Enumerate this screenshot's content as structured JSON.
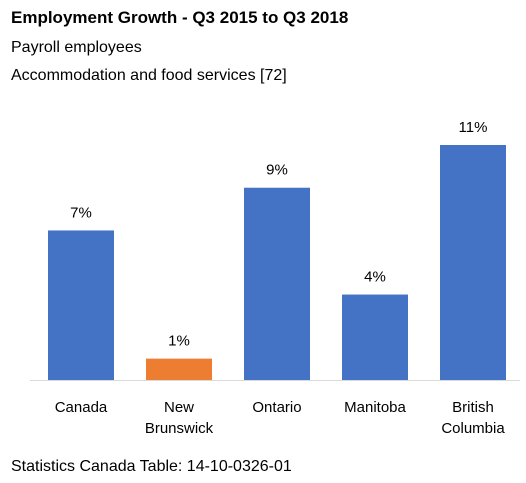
{
  "header": {
    "title": "Employment Growth - Q3 2015 to Q3 2018",
    "subtitle_line1": "Payroll employees",
    "subtitle_line2": "Accommodation and food services  [72]"
  },
  "footer": {
    "source": "Statistics Canada Table: 14-10-0326-01"
  },
  "colors": {
    "default_bar": "#4472C4",
    "highlight_bar": "#ED7D31",
    "axis": "#D9D9D9"
  },
  "chart_data": {
    "type": "bar",
    "title": "Employment Growth - Q3 2015 to Q3 2018",
    "subtitle": "Payroll employees; Accommodation and food services  [72]",
    "xlabel": "",
    "ylabel": "",
    "grid": false,
    "legend": "none",
    "ylim": [
      0,
      11
    ],
    "unit": "%",
    "categories": [
      [
        "Canada"
      ],
      [
        "New",
        "Brunswick"
      ],
      [
        "Ontario"
      ],
      [
        "Manitoba"
      ],
      [
        "British",
        "Columbia"
      ]
    ],
    "values": [
      7,
      1,
      9,
      4,
      11
    ],
    "data_labels": [
      "7%",
      "1%",
      "9%",
      "4%",
      "11%"
    ],
    "highlight_index": 1
  }
}
